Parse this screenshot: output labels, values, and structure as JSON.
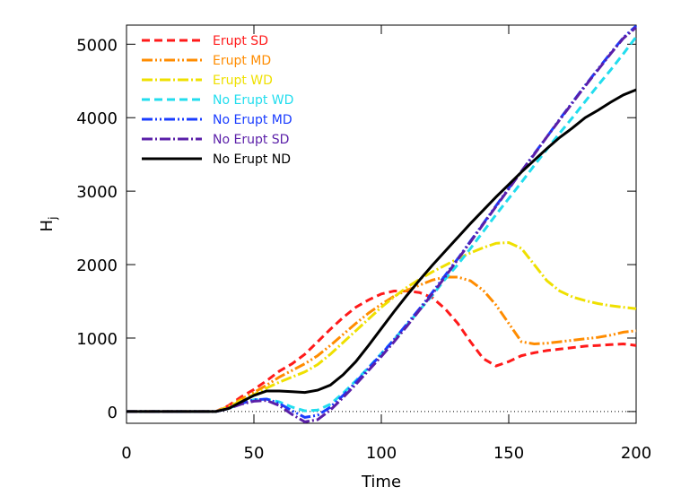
{
  "chart_data": {
    "type": "line",
    "xlabel": "Time",
    "ylabel": "H",
    "ylabel_subscript": "j",
    "x": [
      0,
      5,
      10,
      15,
      20,
      25,
      30,
      35,
      40,
      45,
      50,
      55,
      60,
      65,
      70,
      75,
      80,
      85,
      90,
      95,
      100,
      105,
      110,
      115,
      120,
      125,
      130,
      135,
      140,
      145,
      150,
      155,
      160,
      165,
      170,
      175,
      180,
      185,
      190,
      195,
      200
    ],
    "xlim": [
      0,
      200
    ],
    "ylim": [
      -160,
      5260
    ],
    "xticks": [
      0,
      50,
      100,
      150,
      200
    ],
    "yticks": [
      0,
      1000,
      2000,
      3000,
      4000,
      5000
    ],
    "zero_line": true,
    "legend": "upper-left",
    "series": [
      {
        "name": "Erupt SD",
        "color": "#ff1a1a",
        "style": "dashed",
        "values": [
          0,
          0,
          0,
          0,
          0,
          0,
          0,
          0,
          80,
          200,
          300,
          420,
          550,
          650,
          780,
          950,
          1120,
          1280,
          1420,
          1520,
          1600,
          1640,
          1640,
          1620,
          1550,
          1400,
          1200,
          950,
          720,
          620,
          680,
          760,
          800,
          830,
          850,
          870,
          890,
          900,
          910,
          920,
          900
        ]
      },
      {
        "name": "Erupt MD",
        "color": "#ff8c00",
        "style": "dash-dot-dot",
        "values": [
          0,
          0,
          0,
          0,
          0,
          0,
          0,
          0,
          70,
          170,
          260,
          360,
          470,
          560,
          650,
          760,
          900,
          1050,
          1200,
          1340,
          1460,
          1570,
          1650,
          1720,
          1790,
          1830,
          1830,
          1780,
          1650,
          1450,
          1200,
          950,
          920,
          930,
          950,
          970,
          990,
          1010,
          1040,
          1080,
          1100
        ]
      },
      {
        "name": "Erupt WD",
        "color": "#efe000",
        "style": "dash-dot",
        "values": [
          0,
          0,
          0,
          0,
          0,
          0,
          0,
          0,
          60,
          150,
          230,
          320,
          400,
          470,
          540,
          640,
          780,
          940,
          1100,
          1260,
          1420,
          1560,
          1690,
          1800,
          1900,
          1990,
          2080,
          2160,
          2230,
          2290,
          2300,
          2220,
          2000,
          1780,
          1640,
          1560,
          1510,
          1470,
          1440,
          1420,
          1400
        ]
      },
      {
        "name": "No Erupt WD",
        "color": "#22ddee",
        "style": "dashed",
        "values": [
          0,
          0,
          0,
          0,
          0,
          0,
          0,
          0,
          40,
          110,
          160,
          170,
          130,
          60,
          10,
          20,
          100,
          250,
          420,
          600,
          790,
          980,
          1180,
          1380,
          1580,
          1800,
          2000,
          2220,
          2450,
          2680,
          2900,
          3120,
          3350,
          3570,
          3790,
          4000,
          4220,
          4440,
          4650,
          4870,
          5100
        ]
      },
      {
        "name": "No Erupt MD",
        "color": "#1a3cff",
        "style": "dash-dot-dot",
        "values": [
          0,
          0,
          0,
          0,
          0,
          0,
          0,
          0,
          40,
          110,
          160,
          170,
          110,
          10,
          -80,
          -50,
          60,
          220,
          400,
          590,
          780,
          980,
          1190,
          1400,
          1620,
          1850,
          2080,
          2320,
          2560,
          2800,
          3040,
          3270,
          3510,
          3740,
          3980,
          4210,
          4440,
          4660,
          4880,
          5090,
          5250
        ]
      },
      {
        "name": "No Erupt SD",
        "color": "#5a1fa8",
        "style": "dash-dot",
        "values": [
          0,
          0,
          0,
          0,
          0,
          0,
          0,
          0,
          40,
          100,
          140,
          150,
          80,
          -40,
          -140,
          -110,
          20,
          190,
          370,
          560,
          750,
          950,
          1160,
          1380,
          1600,
          1830,
          2070,
          2310,
          2550,
          2790,
          3030,
          3270,
          3500,
          3740,
          3970,
          4200,
          4430,
          4650,
          4870,
          5080,
          5230
        ]
      },
      {
        "name": "No Erupt ND",
        "color": "#000000",
        "style": "solid",
        "values": [
          0,
          0,
          0,
          0,
          0,
          0,
          0,
          0,
          40,
          130,
          220,
          280,
          280,
          270,
          260,
          290,
          360,
          500,
          680,
          900,
          1130,
          1360,
          1580,
          1790,
          1990,
          2180,
          2370,
          2560,
          2740,
          2920,
          3090,
          3260,
          3420,
          3580,
          3730,
          3860,
          4000,
          4100,
          4210,
          4310,
          4380
        ]
      }
    ]
  }
}
